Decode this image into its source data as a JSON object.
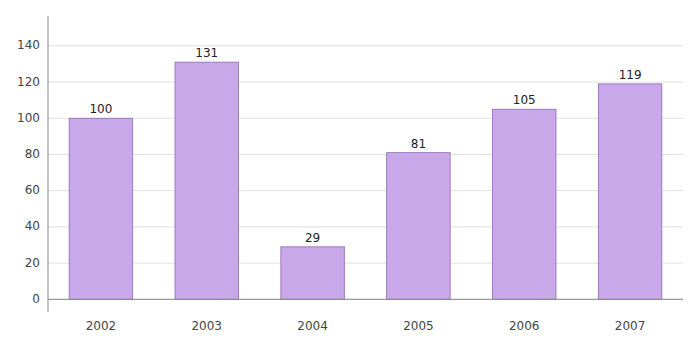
{
  "chart_data": {
    "type": "bar",
    "categories": [
      "2002",
      "2003",
      "2004",
      "2005",
      "2006",
      "2007"
    ],
    "values": [
      100,
      131,
      29,
      81,
      105,
      119
    ],
    "color": "#C8A8E8",
    "ylim": [
      -7,
      156.5
    ],
    "yticks": [
      0,
      20,
      40,
      60,
      80,
      100,
      120,
      140
    ],
    "grid": true,
    "data_labels": true
  }
}
